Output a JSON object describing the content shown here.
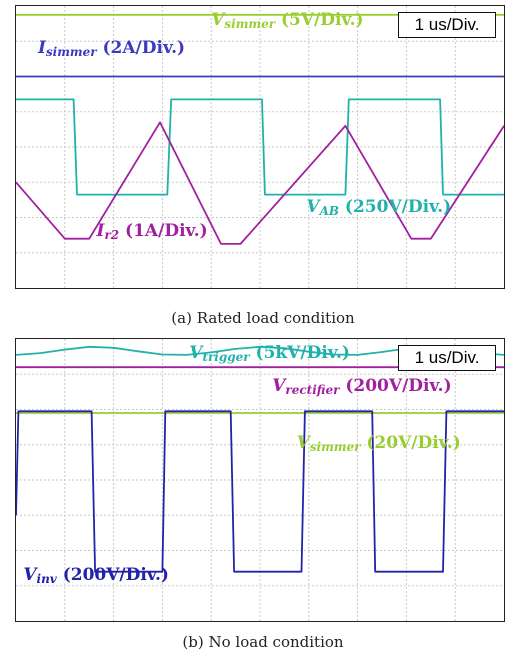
{
  "chart_data": [
    {
      "type": "line",
      "title": "",
      "caption": "(a) Rated load condition",
      "timebase": "1 us/Div.",
      "grid": true,
      "divisions": {
        "x": 10,
        "y": 8
      },
      "series": [
        {
          "name": "V_simmer",
          "main": "V",
          "sub": "simmer",
          "scale": "(5V/Div.)",
          "color": "#9ACD32",
          "x": [
            0,
            10
          ],
          "y": [
            3.75,
            3.75
          ]
        },
        {
          "name": "I_simmer",
          "main": "I",
          "sub": "simmer",
          "scale": "(2A/Div.)",
          "color": "#3A3AC0",
          "x": [
            0,
            10
          ],
          "y": [
            2.0,
            2.0
          ]
        },
        {
          "name": "V_AB",
          "main": "V",
          "sub": "AB",
          "scale": "(250V/Div.)",
          "color": "#20B2AA",
          "x": [
            0,
            1.18,
            1.25,
            3.1,
            3.18,
            5.04,
            5.1,
            6.75,
            6.82,
            8.69,
            8.75,
            10
          ],
          "y": [
            1.35,
            1.35,
            -1.35,
            -1.35,
            1.35,
            1.35,
            -1.35,
            -1.35,
            1.35,
            1.35,
            -1.35,
            -1.35
          ]
        },
        {
          "name": "I_r2",
          "main": "I",
          "sub": "r2",
          "scale": "(1A/Div.)",
          "color": "#A020A0",
          "x": [
            0,
            1.0,
            1.5,
            2.95,
            4.2,
            4.6,
            6.75,
            8.1,
            8.5,
            10
          ],
          "y": [
            -1.0,
            -2.6,
            -2.6,
            0.7,
            -2.75,
            -2.75,
            0.6,
            -2.6,
            -2.6,
            0.6
          ]
        }
      ],
      "annotations": [
        {
          "series": 0,
          "x": 4.0,
          "y": 3.55
        },
        {
          "series": 1,
          "x": 0.45,
          "y": 2.75
        },
        {
          "series": 2,
          "x": 5.95,
          "y": -1.75
        },
        {
          "series": 3,
          "x": 1.65,
          "y": -2.45
        }
      ]
    },
    {
      "type": "line",
      "title": "",
      "caption": "(b) No load condition",
      "timebase": "1 us/Div.",
      "grid": true,
      "divisions": {
        "x": 10,
        "y": 8
      },
      "series": [
        {
          "name": "V_trigger",
          "main": "V",
          "sub": "trigger",
          "scale": "(5kV/Div.)",
          "color": "#20B2AA",
          "x": [
            0,
            0.5,
            1.0,
            1.5,
            2.0,
            2.5,
            3.0,
            3.5,
            4.0,
            4.5,
            5.0,
            5.5,
            6.0,
            6.5,
            7.0,
            7.5,
            8.0,
            8.5,
            9.0,
            9.5,
            10
          ],
          "y": [
            3.55,
            3.6,
            3.7,
            3.78,
            3.75,
            3.65,
            3.56,
            3.55,
            3.62,
            3.72,
            3.78,
            3.74,
            3.64,
            3.56,
            3.55,
            3.63,
            3.73,
            3.77,
            3.7,
            3.6,
            3.55
          ]
        },
        {
          "name": "V_rectifier",
          "main": "V",
          "sub": "rectifier",
          "scale": "(200V/Div.)",
          "color": "#A020A0",
          "x": [
            0,
            10
          ],
          "y": [
            3.2,
            3.2
          ]
        },
        {
          "name": "V_simmer",
          "main": "V",
          "sub": "simmer",
          "scale": "(20V/Div.)",
          "color": "#9ACD32",
          "x": [
            0,
            10
          ],
          "y": [
            1.9,
            1.9
          ]
        },
        {
          "name": "V_inv",
          "main": "V",
          "sub": "inv",
          "scale": "(200V/Div.)",
          "color": "#2323A8",
          "x": [
            0,
            0.05,
            0.15,
            1.55,
            1.62,
            3.0,
            3.06,
            4.4,
            4.47,
            5.85,
            5.92,
            7.3,
            7.36,
            8.75,
            8.82,
            10
          ],
          "y": [
            -1.0,
            1.95,
            1.95,
            1.95,
            -2.6,
            -2.6,
            1.95,
            1.95,
            -2.6,
            -2.6,
            1.95,
            1.95,
            -2.6,
            -2.6,
            1.95,
            1.95
          ]
        }
      ],
      "annotations": [
        {
          "series": 0,
          "x": 3.55,
          "y": 3.55
        },
        {
          "series": 1,
          "x": 5.25,
          "y": 2.6
        },
        {
          "series": 2,
          "x": 5.75,
          "y": 1.0
        },
        {
          "series": 3,
          "x": 0.15,
          "y": -2.75
        }
      ]
    }
  ]
}
